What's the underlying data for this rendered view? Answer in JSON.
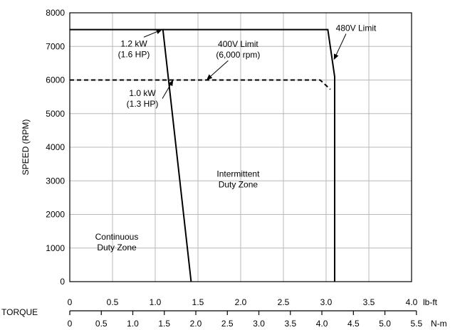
{
  "chart_data": {
    "type": "line",
    "ylabel": "SPEED (RPM)",
    "xlabel": "TORQUE",
    "x_unit_primary": "lb-ft",
    "x_unit_secondary": "N-m",
    "xlim": [
      0,
      4.0
    ],
    "ylim": [
      0,
      8000
    ],
    "grid": true,
    "y_ticks": [
      "0",
      "1000",
      "2000",
      "3000",
      "4000",
      "5000",
      "6000",
      "7000",
      "8000"
    ],
    "x_ticks_lbft": [
      "0",
      "0.5",
      "1.0",
      "1.5",
      "2.0",
      "2.5",
      "3.0",
      "3.5",
      "4.0"
    ],
    "x_ticks_nm": [
      "0",
      "0.5",
      "1.0",
      "1.5",
      "2.0",
      "2.5",
      "3.0",
      "3.5",
      "4.0",
      "4.5",
      "5.0",
      "5.5"
    ],
    "nm_to_lbft": 0.7376,
    "series": [
      {
        "style": "solid",
        "points": [
          [
            0,
            7500
          ],
          [
            1.09,
            7500
          ],
          [
            1.42,
            0
          ]
        ]
      },
      {
        "style": "solid",
        "points": [
          [
            1.09,
            7500
          ],
          [
            3.02,
            7500
          ],
          [
            3.1,
            6100
          ],
          [
            3.1,
            0
          ]
        ]
      },
      {
        "style": "dashed",
        "points": [
          [
            0,
            6000
          ],
          [
            2.93,
            6000
          ],
          [
            3.05,
            5720
          ]
        ]
      }
    ],
    "annotations": [
      {
        "id": "cont_1_2",
        "lines": [
          "1.2 kW",
          "(1.6 HP)"
        ],
        "text_at": [
          0.75,
          7000
        ],
        "arrow_to": [
          1.08,
          7500
        ],
        "anchor": "middle"
      },
      {
        "id": "cont_1_0",
        "lines": [
          "1.0 kW",
          "(1.3 HP)"
        ],
        "text_at": [
          0.85,
          5520
        ],
        "arrow_to": [
          1.21,
          6000
        ],
        "anchor": "middle"
      },
      {
        "id": "lim_400",
        "lines": [
          "400V Limit",
          "(6,000 rpm)"
        ],
        "text_at": [
          1.97,
          6980
        ],
        "arrow_to": [
          1.6,
          6000
        ],
        "anchor": "middle"
      },
      {
        "id": "lim_480",
        "lines": [
          "480V Limit"
        ],
        "text_at": [
          3.35,
          7460
        ],
        "arrow_to": [
          3.09,
          6600
        ],
        "anchor": "middle"
      },
      {
        "id": "zone_int",
        "lines": [
          "Intermittent",
          "Duty Zone"
        ],
        "text_at": [
          1.97,
          3120
        ],
        "anchor": "middle"
      },
      {
        "id": "zone_cont",
        "lines": [
          "Continuous",
          "Duty Zone"
        ],
        "text_at": [
          0.55,
          1250
        ],
        "anchor": "middle"
      }
    ]
  }
}
